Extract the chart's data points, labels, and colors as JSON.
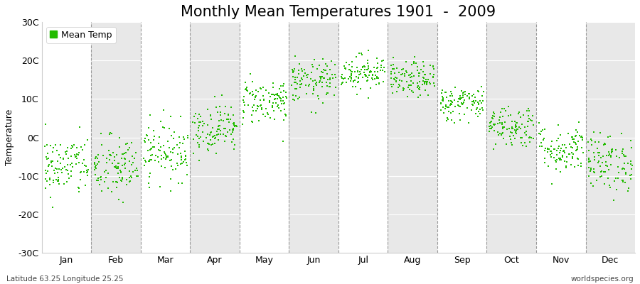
{
  "title": "Monthly Mean Temperatures 1901  -  2009",
  "ylabel": "Temperature",
  "ylim": [
    -30,
    30
  ],
  "yticks": [
    -30,
    -20,
    -10,
    0,
    10,
    20,
    30
  ],
  "ytick_labels": [
    "-30C",
    "-20C",
    "-10C",
    "0C",
    "10C",
    "20C",
    "30C"
  ],
  "dot_color": "#22bb00",
  "dot_size": 3,
  "background_color": "#ffffff",
  "plot_bg_color": "#eeeeee",
  "band_color_light": "#ffffff",
  "band_color_dark": "#e8e8e8",
  "legend_label": "Mean Temp",
  "subtitle_left": "Latitude 63.25 Longitude 25.25",
  "subtitle_right": "worldspecies.org",
  "month_names": [
    "Jan",
    "Feb",
    "Mar",
    "Apr",
    "May",
    "Jun",
    "Jul",
    "Aug",
    "Sep",
    "Oct",
    "Nov",
    "Dec"
  ],
  "monthly_means": [
    -7.5,
    -8.0,
    -3.5,
    2.5,
    9.5,
    14.5,
    17.0,
    15.0,
    9.0,
    3.0,
    -3.0,
    -6.5
  ],
  "monthly_stds": [
    4.0,
    4.2,
    3.8,
    3.2,
    3.0,
    2.8,
    2.3,
    2.3,
    2.3,
    2.8,
    3.2,
    3.8
  ],
  "n_years": 109,
  "seed": 42,
  "title_fontsize": 15,
  "axis_fontsize": 9,
  "legend_fontsize": 9,
  "vline_color": "#999999",
  "vline_lw": 0.8
}
